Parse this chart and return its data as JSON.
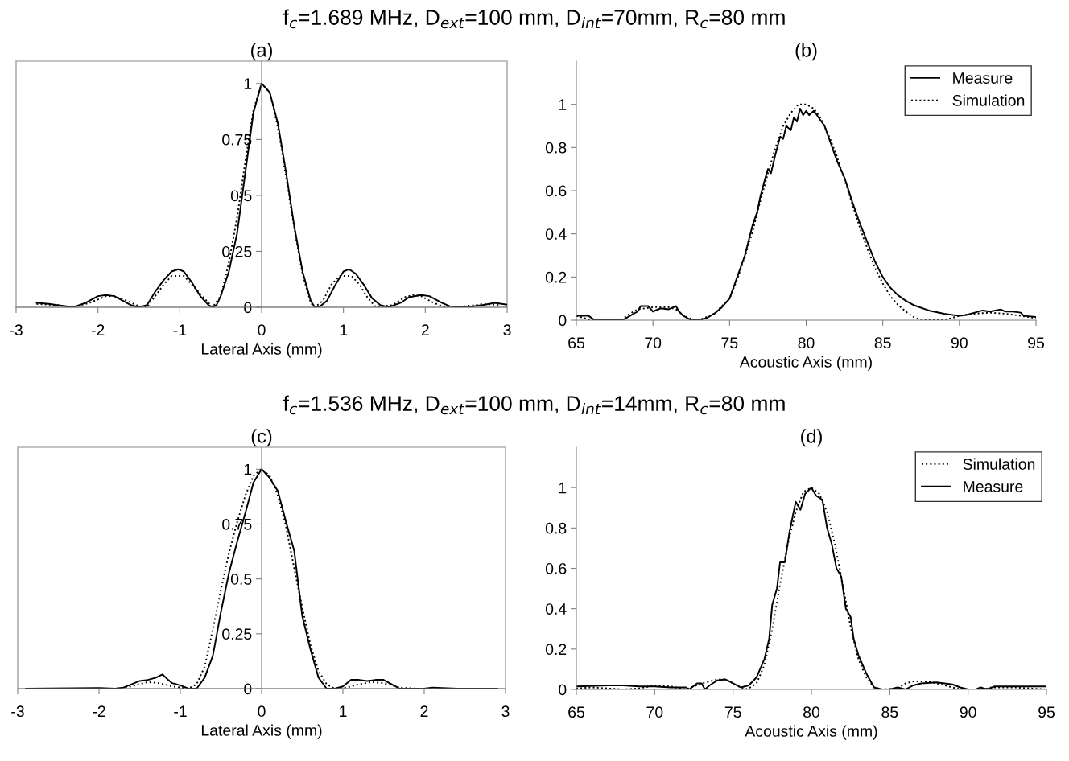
{
  "chart_data": [
    {
      "type": "line",
      "title": "f$_{c}$=1.689 MHz, D$_{ext}$=100 mm, D$_{int}$=70mm, R$_{c}$=80 mm",
      "subtitle": "(a)",
      "xlabel": "Lateral Axis (mm)",
      "xlim": [
        -3,
        3
      ],
      "xticks": [
        -3,
        -2,
        -1,
        0,
        1,
        2,
        3
      ],
      "ylim": [
        0,
        1.1
      ],
      "yticks": [
        0,
        0.25,
        0.5,
        0.75,
        1
      ],
      "grid": false,
      "legend": false,
      "marker": "none",
      "series": [
        {
          "color": "#000000",
          "line_style": "solid",
          "x": [
            -2.75,
            -2.6,
            -2.5,
            -2.3,
            -2.15,
            -2.0,
            -1.9,
            -1.8,
            -1.7,
            -1.6,
            -1.5,
            -1.4,
            -1.3,
            -1.2,
            -1.1,
            -1.02,
            -0.95,
            -0.85,
            -0.75,
            -0.65,
            -0.6,
            -0.55,
            -0.5,
            -0.4,
            -0.3,
            -0.2,
            -0.1,
            0,
            0.1,
            0.2,
            0.3,
            0.4,
            0.5,
            0.6,
            0.65,
            0.7,
            0.8,
            0.9,
            1.0,
            1.07,
            1.15,
            1.25,
            1.35,
            1.45,
            1.55,
            1.7,
            1.8,
            1.95,
            2.05,
            2.2,
            2.3,
            2.5,
            2.7,
            2.85,
            3.0
          ],
          "values": [
            0.02,
            0.015,
            0.01,
            0.0,
            0.02,
            0.05,
            0.055,
            0.05,
            0.03,
            0.01,
            0.0,
            0.01,
            0.07,
            0.12,
            0.16,
            0.17,
            0.16,
            0.11,
            0.05,
            0.01,
            0.0,
            0.01,
            0.05,
            0.16,
            0.33,
            0.6,
            0.87,
            1.0,
            0.96,
            0.82,
            0.6,
            0.36,
            0.16,
            0.03,
            0.0,
            0.0,
            0.03,
            0.1,
            0.16,
            0.17,
            0.15,
            0.1,
            0.04,
            0.01,
            0.0,
            0.02,
            0.045,
            0.055,
            0.05,
            0.02,
            0.005,
            0.0,
            0.01,
            0.02,
            0.012
          ]
        },
        {
          "color": "#000000",
          "line_style": "dotted",
          "x": [
            -2.75,
            -2.5,
            -2.3,
            -2.1,
            -1.9,
            -1.8,
            -1.65,
            -1.5,
            -1.4,
            -1.3,
            -1.2,
            -1.1,
            -0.95,
            -0.85,
            -0.7,
            -0.6,
            -0.5,
            -0.4,
            -0.3,
            -0.2,
            -0.1,
            0,
            0.1,
            0.2,
            0.3,
            0.4,
            0.5,
            0.6,
            0.65,
            0.75,
            0.85,
            0.95,
            1.1,
            1.2,
            1.3,
            1.4,
            1.6,
            1.75,
            1.85,
            1.95,
            2.1,
            2.25,
            2.5,
            2.7,
            2.9
          ],
          "values": [
            0.015,
            0.01,
            0.0,
            0.02,
            0.05,
            0.05,
            0.03,
            0.005,
            0.0,
            0.05,
            0.1,
            0.14,
            0.14,
            0.1,
            0.04,
            0.0,
            0.05,
            0.2,
            0.4,
            0.65,
            0.88,
            1.0,
            0.96,
            0.8,
            0.58,
            0.35,
            0.15,
            0.02,
            0.0,
            0.03,
            0.1,
            0.14,
            0.14,
            0.1,
            0.04,
            0.0,
            0.01,
            0.045,
            0.055,
            0.05,
            0.02,
            0.0,
            0.005,
            0.015,
            0.01
          ]
        }
      ]
    },
    {
      "type": "line",
      "title": "(b)",
      "xlabel": "Acoustic Axis (mm)",
      "xlim": [
        65,
        95
      ],
      "xticks": [
        65,
        70,
        75,
        80,
        85,
        90,
        95
      ],
      "ylim": [
        0,
        1.2
      ],
      "yticks": [
        0,
        0.2,
        0.4,
        0.6,
        0.8,
        1
      ],
      "grid": false,
      "legend": "top right",
      "marker": "none",
      "series": [
        {
          "name": "Measure",
          "color": "#000000",
          "line_style": "solid",
          "x": [
            65,
            65.8,
            66.2,
            68,
            68.5,
            69,
            69.2,
            69.7,
            70,
            70.5,
            71,
            71.5,
            71.7,
            72,
            72.5,
            73,
            73.5,
            74,
            74.5,
            75,
            75.5,
            76,
            76.5,
            76.8,
            77,
            77.3,
            77.5,
            77.7,
            78,
            78.3,
            78.5,
            78.7,
            79,
            79.2,
            79.4,
            79.6,
            79.8,
            80,
            80.2,
            80.5,
            80.8,
            81.2,
            81.6,
            82,
            82.5,
            83,
            83.5,
            84,
            84.5,
            85,
            85.5,
            86,
            86.5,
            87,
            88,
            89,
            90,
            90.5,
            91,
            91.5,
            92,
            92.7,
            93,
            93.5,
            94,
            94.2,
            95
          ],
          "values": [
            0.02,
            0.02,
            0.0,
            0.0,
            0.02,
            0.04,
            0.065,
            0.065,
            0.04,
            0.055,
            0.05,
            0.065,
            0.04,
            0.02,
            0.0,
            0.0,
            0.01,
            0.03,
            0.06,
            0.1,
            0.2,
            0.3,
            0.44,
            0.5,
            0.57,
            0.65,
            0.7,
            0.68,
            0.77,
            0.85,
            0.84,
            0.9,
            0.88,
            0.94,
            0.92,
            0.98,
            0.95,
            0.97,
            0.95,
            0.97,
            0.94,
            0.9,
            0.82,
            0.74,
            0.66,
            0.55,
            0.45,
            0.36,
            0.27,
            0.2,
            0.15,
            0.115,
            0.09,
            0.07,
            0.045,
            0.03,
            0.02,
            0.025,
            0.035,
            0.045,
            0.04,
            0.05,
            0.04,
            0.04,
            0.035,
            0.02,
            0.015
          ]
        },
        {
          "name": "Simulation",
          "color": "#000000",
          "line_style": "dotted",
          "x": [
            65,
            65.5,
            66,
            67.9,
            68.5,
            69,
            70,
            71,
            71.5,
            72,
            72.5,
            73,
            74,
            75,
            75.5,
            76,
            76.5,
            77,
            77.5,
            78,
            78.5,
            79,
            79.5,
            80,
            80.5,
            81,
            81.5,
            82,
            82.5,
            83,
            83.5,
            84,
            84.5,
            85,
            85.5,
            86,
            86.5,
            87,
            87.5,
            89,
            89.5,
            90,
            91,
            92,
            93,
            94,
            95
          ],
          "values": [
            0.02,
            0.01,
            0.0,
            0.0,
            0.03,
            0.05,
            0.06,
            0.06,
            0.05,
            0.02,
            0.005,
            0.0,
            0.03,
            0.1,
            0.19,
            0.29,
            0.41,
            0.55,
            0.68,
            0.8,
            0.9,
            0.96,
            1.0,
            1.0,
            0.98,
            0.93,
            0.85,
            0.76,
            0.65,
            0.54,
            0.43,
            0.33,
            0.24,
            0.17,
            0.11,
            0.07,
            0.04,
            0.015,
            0.0,
            0.0,
            0.01,
            0.02,
            0.03,
            0.035,
            0.03,
            0.02,
            0.01
          ]
        }
      ]
    },
    {
      "type": "line",
      "title": "f$_{c}$=1.536 MHz, D$_{ext}$=100 mm, D$_{int}$=14mm, R$_{c}$=80 mm",
      "subtitle": "(c)",
      "xlabel": "Lateral Axis (mm)",
      "xlim": [
        -3,
        3
      ],
      "xticks": [
        -3,
        -2,
        -1,
        0,
        1,
        2,
        3
      ],
      "ylim": [
        0,
        1.1
      ],
      "yticks": [
        0,
        0.25,
        0.5,
        0.75,
        1
      ],
      "grid": false,
      "legend": false,
      "marker": "none",
      "series": [
        {
          "color": "#000000",
          "line_style": "solid",
          "x": [
            -2.9,
            -2,
            -1.8,
            -1.7,
            -1.6,
            -1.5,
            -1.4,
            -1.3,
            -1.22,
            -1.15,
            -1.1,
            -1.0,
            -0.9,
            -0.8,
            -0.7,
            -0.6,
            -0.5,
            -0.4,
            -0.3,
            -0.2,
            -0.1,
            0,
            0.1,
            0.2,
            0.3,
            0.4,
            0.5,
            0.6,
            0.7,
            0.8,
            0.9,
            1.0,
            1.1,
            1.2,
            1.3,
            1.4,
            1.5,
            1.6,
            1.7,
            2.0,
            2.1,
            2.4,
            2.9
          ],
          "values": [
            0.0,
            0.003,
            0.0,
            0.005,
            0.02,
            0.035,
            0.04,
            0.05,
            0.065,
            0.04,
            0.025,
            0.015,
            0.0,
            0.0,
            0.05,
            0.15,
            0.35,
            0.53,
            0.67,
            0.8,
            0.94,
            1.0,
            0.96,
            0.9,
            0.76,
            0.63,
            0.33,
            0.18,
            0.05,
            0.0,
            0.0,
            0.01,
            0.04,
            0.04,
            0.035,
            0.04,
            0.04,
            0.02,
            0.0,
            0.0,
            0.005,
            0.0,
            0.0
          ]
        },
        {
          "color": "#000000",
          "line_style": "dotted",
          "x": [
            -2.9,
            -1.8,
            -1.6,
            -1.4,
            -1.25,
            -1.1,
            -0.9,
            -0.8,
            -0.7,
            -0.6,
            -0.5,
            -0.4,
            -0.3,
            -0.2,
            -0.1,
            0,
            0.1,
            0.2,
            0.3,
            0.4,
            0.5,
            0.6,
            0.7,
            0.8,
            0.9,
            1.05,
            1.2,
            1.35,
            1.5,
            1.7,
            1.9,
            2.9
          ],
          "values": [
            0.0,
            0.0,
            0.01,
            0.03,
            0.025,
            0.01,
            0.0,
            0.02,
            0.1,
            0.27,
            0.45,
            0.62,
            0.76,
            0.88,
            0.97,
            1.0,
            0.97,
            0.88,
            0.74,
            0.55,
            0.37,
            0.2,
            0.08,
            0.02,
            0.0,
            0.005,
            0.02,
            0.03,
            0.025,
            0.005,
            0.0,
            0.0
          ]
        }
      ]
    },
    {
      "type": "line",
      "title": "(d)",
      "xlabel": "Acoustic Axis (mm)",
      "xlim": [
        65,
        95
      ],
      "xticks": [
        65,
        70,
        75,
        80,
        85,
        90,
        95
      ],
      "ylim": [
        0,
        1.2
      ],
      "yticks": [
        0,
        0.2,
        0.4,
        0.6,
        0.8,
        1
      ],
      "grid": false,
      "legend": "top right",
      "marker": "none",
      "series": [
        {
          "name": "Simulation",
          "color": "#000000",
          "line_style": "dotted",
          "x": [
            65,
            66,
            67,
            68,
            69,
            70,
            71,
            72,
            73,
            74,
            74.5,
            75,
            75.7,
            76,
            76.5,
            77,
            77.5,
            78,
            78.5,
            79,
            79.5,
            80,
            80.5,
            81,
            81.5,
            82,
            82.5,
            83,
            83.5,
            84,
            84.5,
            85.5,
            86,
            86.5,
            87.5,
            88.5,
            89,
            89.5,
            91,
            91.5,
            93,
            94,
            95
          ],
          "values": [
            0.005,
            0.01,
            0.005,
            0.0,
            0.005,
            0.02,
            0.015,
            0.0,
            0.03,
            0.05,
            0.05,
            0.03,
            0.0,
            0.005,
            0.03,
            0.12,
            0.3,
            0.52,
            0.72,
            0.88,
            0.98,
            1.0,
            0.97,
            0.88,
            0.72,
            0.52,
            0.31,
            0.15,
            0.06,
            0.01,
            0.0,
            0.005,
            0.03,
            0.04,
            0.04,
            0.02,
            0.01,
            0.0,
            0.0,
            0.01,
            0.01,
            0.005,
            0.0
          ]
        },
        {
          "name": "Measure",
          "color": "#000000",
          "line_style": "solid",
          "x": [
            65,
            67,
            68,
            69,
            70,
            71,
            72,
            72.2,
            72.7,
            73,
            73.2,
            73.5,
            74,
            74.5,
            75,
            75.5,
            76,
            76.5,
            77,
            77.3,
            77.5,
            77.8,
            78,
            78.3,
            78.6,
            79,
            79.3,
            79.6,
            80,
            80.3,
            80.7,
            81,
            81.3,
            81.6,
            81.9,
            82.2,
            82.5,
            82.7,
            83,
            83.5,
            84,
            84.5,
            85,
            85.5,
            86,
            86.5,
            87,
            88,
            89,
            89.5,
            90,
            90.5,
            90.8,
            91.2,
            91.7,
            93,
            94,
            95
          ],
          "values": [
            0.015,
            0.02,
            0.02,
            0.015,
            0.015,
            0.01,
            0.01,
            0.0,
            0.03,
            0.03,
            0.0,
            0.02,
            0.045,
            0.05,
            0.03,
            0.01,
            0.02,
            0.06,
            0.15,
            0.25,
            0.42,
            0.5,
            0.63,
            0.63,
            0.78,
            0.93,
            0.89,
            0.97,
            1.0,
            0.96,
            0.94,
            0.8,
            0.72,
            0.6,
            0.56,
            0.4,
            0.36,
            0.25,
            0.17,
            0.08,
            0.01,
            0.0,
            0.0,
            0.01,
            0.0,
            0.02,
            0.03,
            0.035,
            0.025,
            0.01,
            0.0,
            0.0,
            0.01,
            0.0,
            0.015,
            0.015,
            0.015,
            0.015
          ]
        }
      ]
    }
  ]
}
